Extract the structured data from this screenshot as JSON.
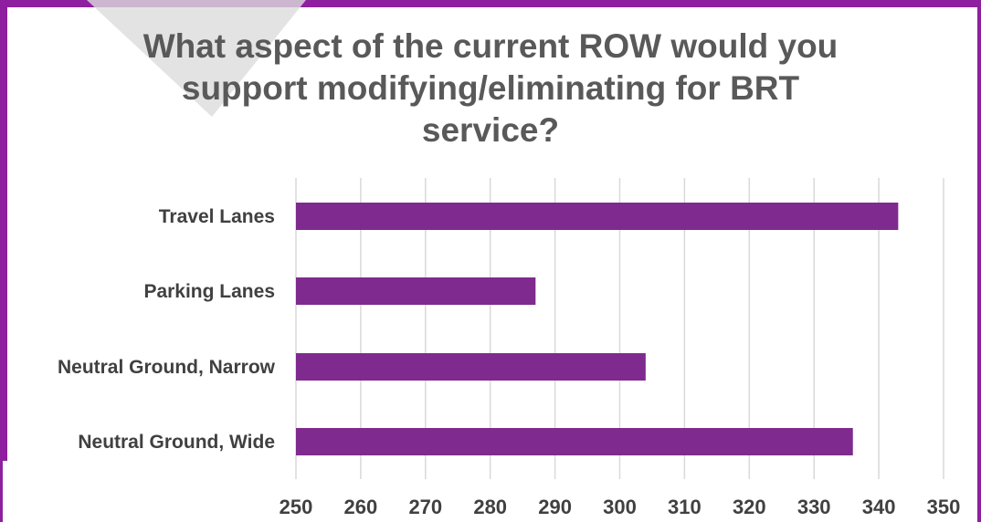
{
  "colors": {
    "frame": "#8e1f9f",
    "bar": "#7f2a8e",
    "title": "#595959",
    "label": "#404040",
    "grid": "#d9d9d9"
  },
  "chart_data": {
    "type": "bar",
    "orientation": "horizontal",
    "title_lines": [
      "What aspect of the current ROW would you",
      "support modifying/eliminating for BRT",
      "service?"
    ],
    "categories": [
      "Travel Lanes",
      "Parking Lanes",
      "Neutral Ground, Narrow",
      "Neutral Ground, Wide"
    ],
    "values": [
      343,
      287,
      304,
      336
    ],
    "xlim": [
      250,
      350
    ],
    "xticks": [
      "250",
      "260",
      "270",
      "280",
      "290",
      "300",
      "310",
      "320",
      "330",
      "340",
      "350"
    ],
    "grid": true,
    "legend": "none"
  }
}
